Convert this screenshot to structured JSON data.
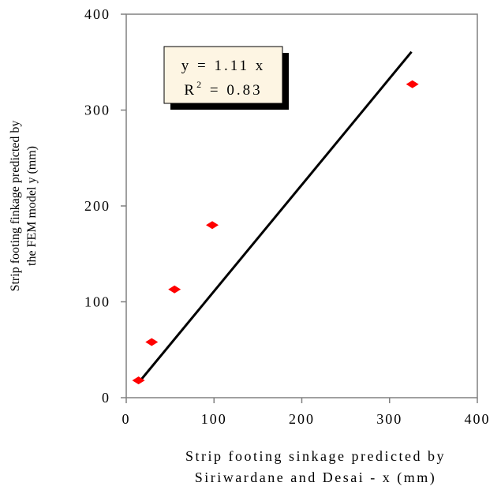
{
  "chart_data": {
    "type": "scatter",
    "xlabel_lines": [
      "Strip footing sinkage predicted by",
      "Siriwardane and Desai - x (mm)"
    ],
    "ylabel_lines": [
      "Strip footing finkage predicted by",
      "the FEM model y (mm)"
    ],
    "xlim": [
      0,
      400
    ],
    "ylim": [
      0,
      400
    ],
    "x_ticks": [
      "0",
      "100",
      "200",
      "300",
      "400"
    ],
    "y_ticks": [
      "0",
      "100",
      "200",
      "300",
      "400"
    ],
    "points": [
      {
        "x": 14,
        "y": 18
      },
      {
        "x": 29,
        "y": 58
      },
      {
        "x": 55,
        "y": 113
      },
      {
        "x": 98,
        "y": 180
      },
      {
        "x": 326,
        "y": 327
      }
    ],
    "trendline": {
      "slope": 1.11,
      "x_range": [
        14,
        325
      ]
    },
    "equation": {
      "line1": "y = 1.11 x",
      "r2_prefix": "R",
      "r2_sup": "2",
      "r2_suffix": " = 0.83"
    },
    "colors": {
      "points": "#ff0000",
      "trendline": "#000000",
      "equation_box": "#fdf5e3"
    },
    "grid": false,
    "legend": "none"
  }
}
